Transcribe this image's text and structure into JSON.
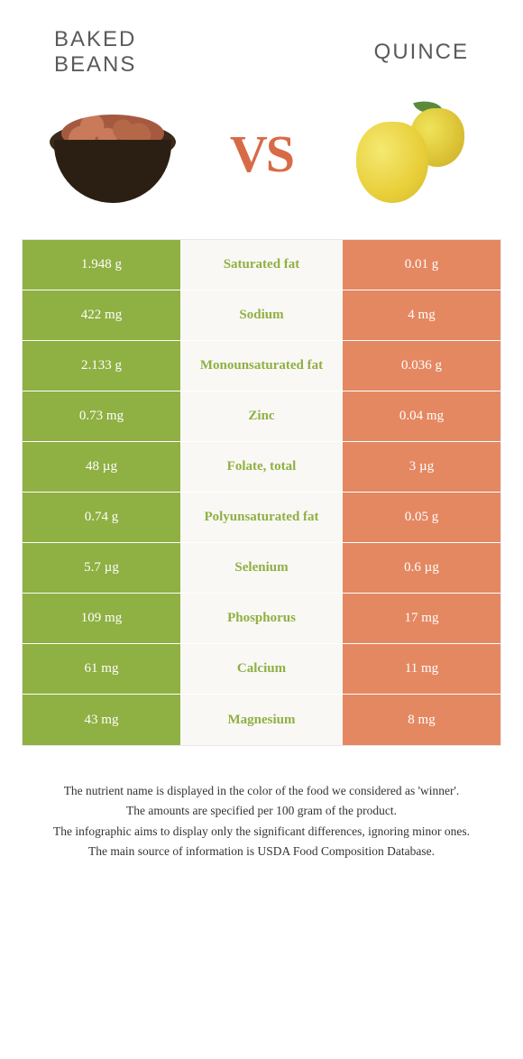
{
  "colors": {
    "left_bg": "#8fb043",
    "right_bg": "#e48862",
    "mid_bg": "#f9f8f4",
    "winner_left_text": "#8fb043",
    "winner_right_text": "#e48862",
    "vs": "#d86b47",
    "title": "#5a5a5a"
  },
  "foods": {
    "left_name": "BAKED\nBEANS",
    "right_name": "QUINCE",
    "vs": "VS"
  },
  "rows": [
    {
      "left": "1.948 g",
      "label": "Saturated fat",
      "right": "0.01 g",
      "winner": "left"
    },
    {
      "left": "422 mg",
      "label": "Sodium",
      "right": "4 mg",
      "winner": "left"
    },
    {
      "left": "2.133 g",
      "label": "Monounsaturated fat",
      "right": "0.036 g",
      "winner": "left"
    },
    {
      "left": "0.73 mg",
      "label": "Zinc",
      "right": "0.04 mg",
      "winner": "left"
    },
    {
      "left": "48 µg",
      "label": "Folate, total",
      "right": "3 µg",
      "winner": "left"
    },
    {
      "left": "0.74 g",
      "label": "Polyunsaturated fat",
      "right": "0.05 g",
      "winner": "left"
    },
    {
      "left": "5.7 µg",
      "label": "Selenium",
      "right": "0.6 µg",
      "winner": "left"
    },
    {
      "left": "109 mg",
      "label": "Phosphorus",
      "right": "17 mg",
      "winner": "left"
    },
    {
      "left": "61 mg",
      "label": "Calcium",
      "right": "11 mg",
      "winner": "left"
    },
    {
      "left": "43 mg",
      "label": "Magnesium",
      "right": "8 mg",
      "winner": "left"
    }
  ],
  "footer": {
    "l1": "The nutrient name is displayed in the color of the food we considered as 'winner'.",
    "l2": "The amounts are specified per 100 gram of the product.",
    "l3": "The infographic aims to display only the significant differences, ignoring minor ones.",
    "l4": "The main source of information is USDA Food Composition Database."
  }
}
